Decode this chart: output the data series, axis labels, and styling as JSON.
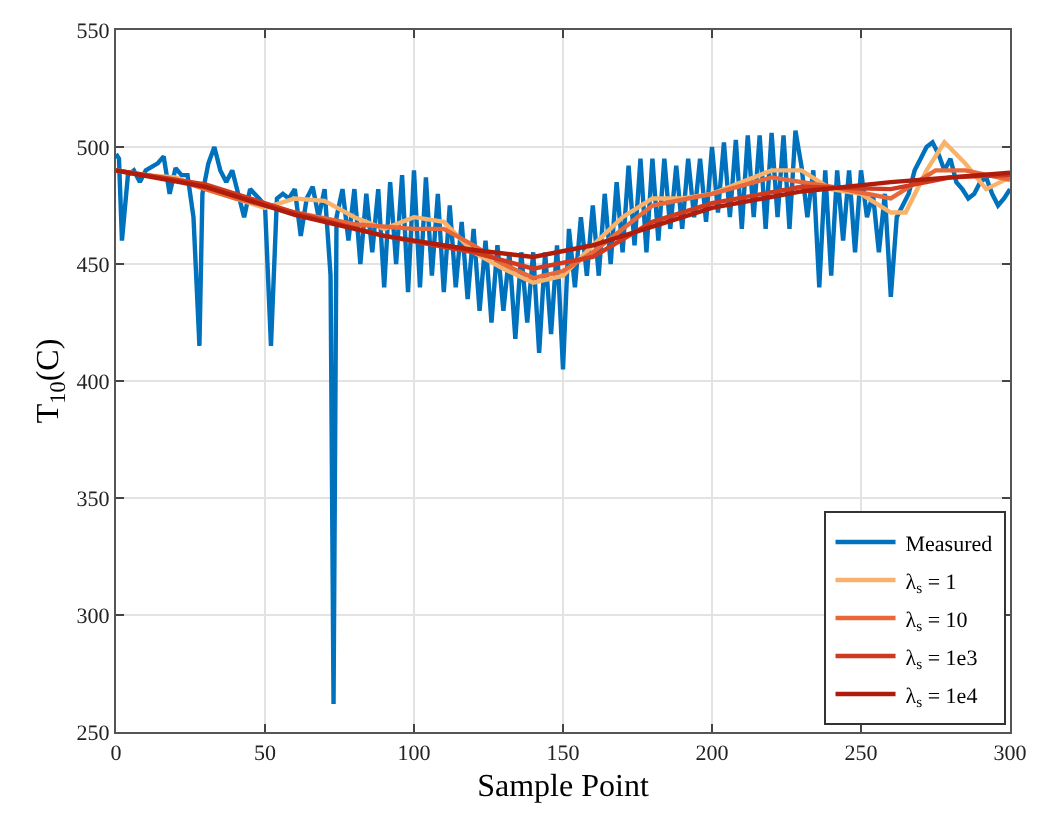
{
  "chart_data": {
    "type": "line",
    "xlabel": "Sample Point",
    "ylabel": "T$_{10}$(C)",
    "xlim": [
      0,
      300
    ],
    "xticks": [
      0,
      50,
      100,
      150,
      200,
      250,
      300
    ],
    "ylim": [
      250,
      550
    ],
    "yticks": [
      250,
      300,
      350,
      400,
      450,
      500,
      550
    ],
    "grid": true,
    "legend": "bottom right",
    "line_style": "solid",
    "marker": "none",
    "series": [
      {
        "name": "Measured",
        "color": "#0072bd",
        "x": [
          0,
          1,
          2,
          4,
          6,
          8,
          10,
          14,
          16,
          18,
          20,
          22,
          24,
          26,
          28,
          29,
          31,
          33,
          35,
          37,
          39,
          41,
          43,
          45,
          48,
          50,
          52,
          54,
          56,
          58,
          60,
          62,
          64,
          66,
          68,
          70,
          72,
          73,
          74,
          76,
          78,
          80,
          82,
          84,
          86,
          88,
          90,
          92,
          94,
          96,
          98,
          100,
          102,
          104,
          106,
          108,
          110,
          112,
          114,
          116,
          118,
          120,
          122,
          124,
          126,
          128,
          130,
          132,
          134,
          136,
          138,
          140,
          142,
          144,
          146,
          148,
          150,
          152,
          154,
          156,
          158,
          160,
          162,
          164,
          166,
          168,
          170,
          172,
          174,
          176,
          178,
          180,
          182,
          184,
          186,
          188,
          190,
          192,
          194,
          196,
          198,
          200,
          202,
          204,
          206,
          208,
          210,
          212,
          214,
          216,
          218,
          220,
          222,
          224,
          226,
          228,
          230,
          232,
          234,
          236,
          238,
          240,
          242,
          244,
          246,
          248,
          250,
          252,
          254,
          256,
          258,
          260,
          262,
          264,
          266,
          268,
          270,
          272,
          274,
          276,
          278,
          280,
          282,
          284,
          286,
          288,
          290,
          292,
          294,
          296,
          298,
          300
        ],
        "values": [
          497,
          495,
          460,
          488,
          490,
          485,
          490,
          493,
          496,
          480,
          491,
          488,
          488,
          470,
          415,
          480,
          493,
          500,
          490,
          485,
          490,
          480,
          470,
          482,
          478,
          475,
          415,
          478,
          480,
          478,
          482,
          462,
          478,
          483,
          470,
          482,
          445,
          262,
          470,
          482,
          460,
          482,
          450,
          480,
          455,
          482,
          440,
          485,
          450,
          488,
          438,
          490,
          440,
          487,
          445,
          480,
          438,
          475,
          440,
          468,
          435,
          465,
          430,
          460,
          425,
          458,
          430,
          455,
          418,
          455,
          425,
          455,
          412,
          455,
          420,
          458,
          405,
          465,
          440,
          470,
          445,
          475,
          445,
          480,
          450,
          485,
          455,
          492,
          458,
          495,
          455,
          495,
          460,
          495,
          465,
          492,
          465,
          495,
          470,
          495,
          468,
          500,
          472,
          502,
          470,
          503,
          465,
          505,
          470,
          505,
          465,
          506,
          470,
          505,
          465,
          507,
          492,
          470,
          490,
          440,
          490,
          445,
          490,
          460,
          490,
          455,
          490,
          470,
          480,
          455,
          480,
          436,
          470,
          475,
          480,
          490,
          495,
          500,
          502,
          497,
          490,
          495,
          485,
          482,
          478,
          480,
          485,
          487,
          480,
          475,
          478,
          482
        ]
      },
      {
        "name": "λ$_{s}$ = 1",
        "color": "#f9b26b",
        "x": [
          0,
          10,
          20,
          30,
          40,
          50,
          60,
          70,
          80,
          90,
          100,
          110,
          120,
          130,
          140,
          150,
          160,
          170,
          180,
          190,
          200,
          210,
          220,
          230,
          240,
          250,
          260,
          265,
          272,
          278,
          285,
          292,
          300
        ],
        "values": [
          490,
          488,
          487,
          482,
          478,
          474,
          478,
          477,
          470,
          465,
          470,
          468,
          455,
          448,
          442,
          445,
          458,
          470,
          478,
          478,
          480,
          485,
          490,
          490,
          482,
          480,
          472,
          472,
          490,
          502,
          493,
          482,
          487
        ]
      },
      {
        "name": "λ$_{s}$ = 10",
        "color": "#e8683a",
        "x": [
          0,
          20,
          40,
          60,
          80,
          100,
          110,
          120,
          130,
          140,
          150,
          160,
          170,
          180,
          200,
          220,
          240,
          260,
          275,
          285,
          300
        ],
        "values": [
          490,
          486,
          478,
          472,
          467,
          465,
          465,
          458,
          450,
          444,
          447,
          455,
          465,
          475,
          480,
          487,
          483,
          478,
          490,
          490,
          486
        ]
      },
      {
        "name": "λ$_{s}$ = 1e3",
        "color": "#d03a20",
        "x": [
          0,
          30,
          60,
          90,
          120,
          140,
          160,
          180,
          200,
          230,
          260,
          280,
          300
        ],
        "values": [
          490,
          484,
          472,
          462,
          455,
          448,
          453,
          468,
          476,
          483,
          482,
          487,
          488
        ]
      },
      {
        "name": "λ$_{s}$ = 1e4",
        "color": "#b01c0c",
        "x": [
          0,
          30,
          60,
          90,
          120,
          140,
          160,
          180,
          200,
          230,
          260,
          300
        ],
        "values": [
          490,
          483,
          471,
          462,
          456,
          453,
          458,
          466,
          474,
          481,
          485,
          489
        ]
      }
    ]
  }
}
